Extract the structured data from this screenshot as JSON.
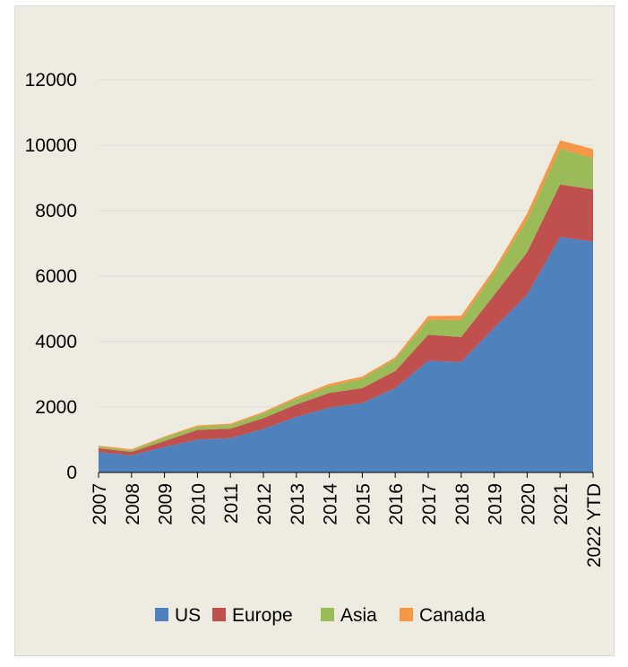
{
  "chart_data": {
    "type": "area",
    "stacked": true,
    "title": "",
    "xlabel": "",
    "ylabel": "",
    "ylim": [
      0,
      12000
    ],
    "yticks": [
      0,
      2000,
      4000,
      6000,
      8000,
      10000,
      12000
    ],
    "grid": true,
    "legend_position": "bottom",
    "categories": [
      "2007",
      "2008",
      "2009",
      "2010",
      "2011",
      "2012",
      "2013",
      "2014",
      "2015",
      "2016",
      "2017",
      "2018",
      "2019",
      "2020",
      "2021",
      "2022 YTD"
    ],
    "series": [
      {
        "name": "US",
        "color": "#4f81bd",
        "values": [
          620,
          520,
          780,
          1000,
          1050,
          1330,
          1700,
          1980,
          2120,
          2580,
          3410,
          3380,
          4420,
          5430,
          7200,
          7050
        ]
      },
      {
        "name": "Europe",
        "color": "#c0504d",
        "values": [
          120,
          110,
          180,
          300,
          290,
          330,
          380,
          450,
          460,
          520,
          800,
          760,
          1000,
          1300,
          1600,
          1600
        ]
      },
      {
        "name": "Asia",
        "color": "#9bbb59",
        "values": [
          50,
          50,
          110,
          100,
          110,
          150,
          170,
          200,
          290,
          360,
          450,
          520,
          680,
          1000,
          1100,
          950
        ]
      },
      {
        "name": "Canada",
        "color": "#f79646",
        "values": [
          30,
          30,
          30,
          40,
          40,
          40,
          60,
          80,
          60,
          60,
          120,
          130,
          120,
          180,
          250,
          280
        ]
      }
    ]
  }
}
